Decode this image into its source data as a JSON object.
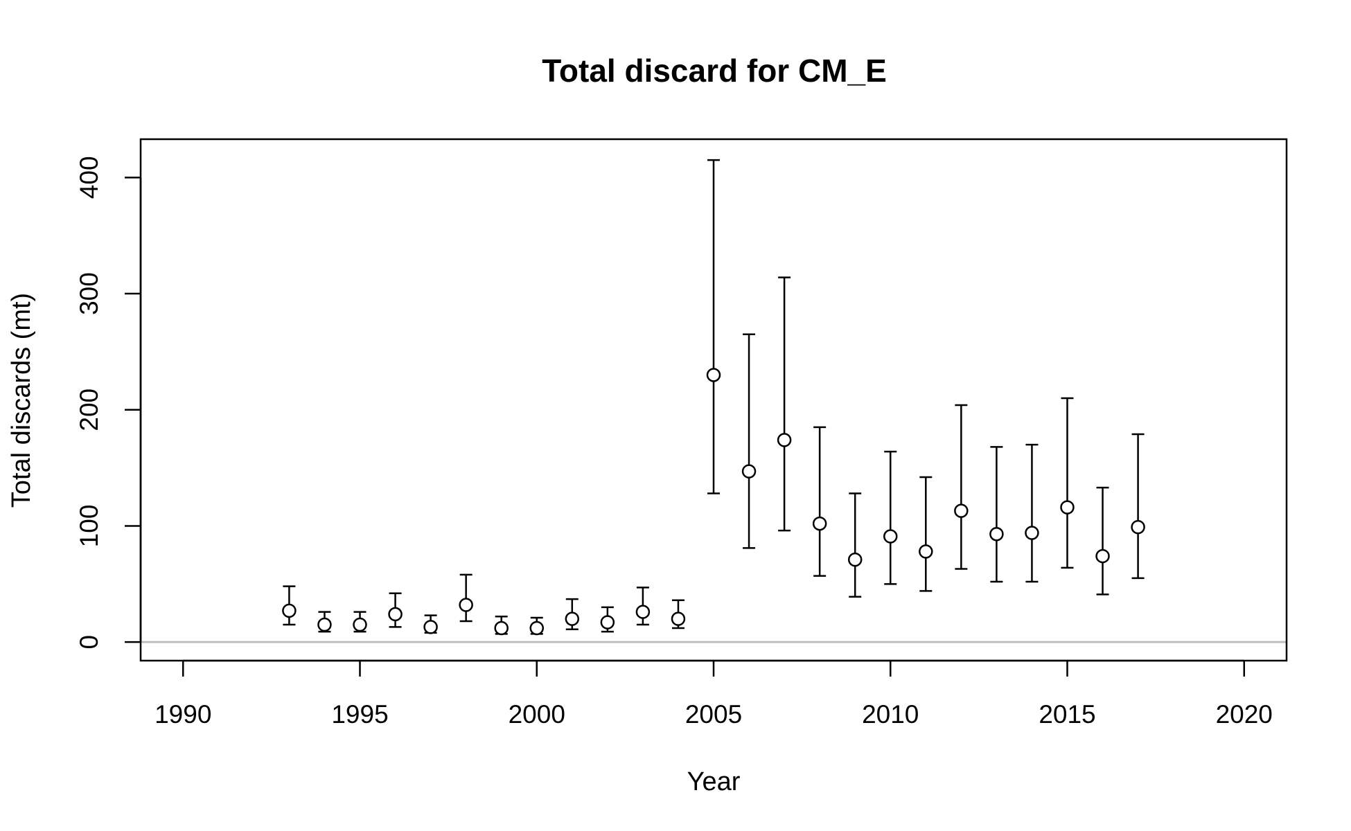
{
  "chart_data": {
    "type": "scatter",
    "title": "Total discard for CM_E",
    "xlabel": "Year",
    "ylabel": "Total discards (mt)",
    "xlim": [
      1988.8,
      2021.2
    ],
    "ylim": [
      -16,
      433
    ],
    "x_ticks": [
      1990,
      1995,
      2000,
      2005,
      2010,
      2015,
      2020
    ],
    "y_ticks": [
      0,
      100,
      200,
      300,
      400
    ],
    "grid": false,
    "legend": "none",
    "reference_line": {
      "y": 0,
      "color": "#bebebe"
    },
    "series": [
      {
        "marker": "open-circle",
        "color": "#000000",
        "points": [
          {
            "x": 1993,
            "y": 27,
            "lo": 15,
            "hi": 48
          },
          {
            "x": 1994,
            "y": 15,
            "lo": 9,
            "hi": 26
          },
          {
            "x": 1995,
            "y": 15,
            "lo": 9,
            "hi": 26
          },
          {
            "x": 1996,
            "y": 24,
            "lo": 13,
            "hi": 42
          },
          {
            "x": 1997,
            "y": 13,
            "lo": 8,
            "hi": 23
          },
          {
            "x": 1998,
            "y": 32,
            "lo": 18,
            "hi": 58
          },
          {
            "x": 1999,
            "y": 12,
            "lo": 7,
            "hi": 22
          },
          {
            "x": 2000,
            "y": 12,
            "lo": 7,
            "hi": 21
          },
          {
            "x": 2001,
            "y": 20,
            "lo": 11,
            "hi": 37
          },
          {
            "x": 2002,
            "y": 17,
            "lo": 9,
            "hi": 30
          },
          {
            "x": 2003,
            "y": 26,
            "lo": 15,
            "hi": 47
          },
          {
            "x": 2004,
            "y": 20,
            "lo": 12,
            "hi": 36
          },
          {
            "x": 2005,
            "y": 230,
            "lo": 128,
            "hi": 415
          },
          {
            "x": 2006,
            "y": 147,
            "lo": 81,
            "hi": 265
          },
          {
            "x": 2007,
            "y": 174,
            "lo": 96,
            "hi": 314
          },
          {
            "x": 2008,
            "y": 102,
            "lo": 57,
            "hi": 185
          },
          {
            "x": 2009,
            "y": 71,
            "lo": 39,
            "hi": 128
          },
          {
            "x": 2010,
            "y": 91,
            "lo": 50,
            "hi": 164
          },
          {
            "x": 2011,
            "y": 78,
            "lo": 44,
            "hi": 142
          },
          {
            "x": 2012,
            "y": 113,
            "lo": 63,
            "hi": 204
          },
          {
            "x": 2013,
            "y": 93,
            "lo": 52,
            "hi": 168
          },
          {
            "x": 2014,
            "y": 94,
            "lo": 52,
            "hi": 170
          },
          {
            "x": 2015,
            "y": 116,
            "lo": 64,
            "hi": 210
          },
          {
            "x": 2016,
            "y": 74,
            "lo": 41,
            "hi": 133
          },
          {
            "x": 2017,
            "y": 99,
            "lo": 55,
            "hi": 179
          }
        ]
      }
    ]
  }
}
